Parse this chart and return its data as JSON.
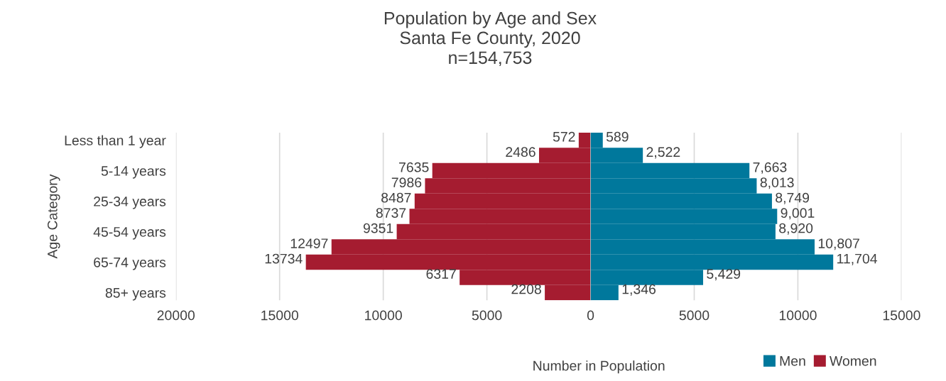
{
  "chart_data": [
    {
      "type": "bar",
      "orientation": "horizontal",
      "title": "Population by Age and Sex\nSanta Fe County, 2020\nn=154,753",
      "xlabel": "Number in Population",
      "ylabel": "Age Category",
      "categories": [
        "Less than 1 year",
        null,
        "5-14 years",
        null,
        "25-34 years",
        null,
        "45-54 years",
        null,
        "65-74 years",
        null,
        "85+ years"
      ],
      "series": [
        {
          "name": "Women",
          "color": "#a51c30",
          "values": [
            572,
            2486,
            7635,
            7986,
            8487,
            8737,
            9351,
            12497,
            13734,
            6317,
            2208
          ]
        }
      ],
      "data_labels": true,
      "xlim": [
        20000,
        0
      ],
      "xticks": [
        20000,
        15000,
        10000,
        5000,
        0
      ],
      "grid": "x",
      "legend": "bottom right"
    },
    {
      "type": "bar",
      "orientation": "horizontal",
      "categories": [
        null,
        null,
        null,
        null,
        null,
        null,
        null,
        null,
        null,
        null,
        null
      ],
      "series": [
        {
          "name": "Men",
          "color": "#00789c",
          "values": [
            589,
            2522,
            7663,
            8013,
            8749,
            9001,
            8920,
            10807,
            11704,
            5429,
            1346
          ],
          "value_labels": [
            "589",
            "2,522",
            "7,663",
            "8,013",
            "8,749",
            "9,001",
            "8,920",
            "10,807",
            "11,704",
            "5,429",
            "1,346"
          ]
        }
      ],
      "xlim": [
        0,
        15000
      ],
      "xticks": [
        {
          "value": 0,
          "label": null
        },
        5000,
        10000,
        15000
      ],
      "tick_labels": "x",
      "grid": "x",
      "legend": "bottom right"
    }
  ]
}
